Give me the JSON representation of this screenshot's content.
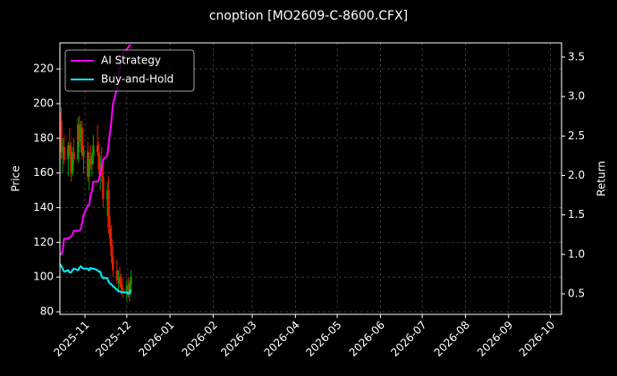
{
  "chart_data": {
    "type": "candlestick",
    "title": "cnoption [MO2609-C-8600.CFX]",
    "ylabel": "Price",
    "y2label": "Return",
    "x": [
      "2025-10-14",
      "2025-10-15",
      "2025-10-16",
      "2025-10-17",
      "2025-10-20",
      "2025-10-21",
      "2025-10-22",
      "2025-10-23",
      "2025-10-24",
      "2025-10-27",
      "2025-10-28",
      "2025-10-29",
      "2025-10-30",
      "2025-10-31",
      "2025-11-03",
      "2025-11-04",
      "2025-11-05",
      "2025-11-06",
      "2025-11-07",
      "2025-11-10",
      "2025-11-11",
      "2025-11-12",
      "2025-11-13",
      "2025-11-14",
      "2025-11-17",
      "2025-11-18",
      "2025-11-19",
      "2025-11-20",
      "2025-11-21",
      "2025-11-24",
      "2025-11-25",
      "2025-11-26",
      "2025-11-27",
      "2025-11-28",
      "2025-12-01",
      "2025-12-02",
      "2025-12-03",
      "2025-12-04"
    ],
    "open": [
      195,
      190,
      172,
      175,
      168,
      176,
      172,
      160,
      172,
      168,
      188,
      178,
      186,
      170,
      172,
      158,
      168,
      165,
      170,
      176,
      172,
      162,
      166,
      158,
      145,
      150,
      128,
      122,
      112,
      104,
      98,
      100,
      96,
      94,
      92,
      95,
      90,
      96
    ],
    "high": [
      205,
      198,
      180,
      182,
      178,
      186,
      178,
      175,
      180,
      192,
      193,
      190,
      190,
      176,
      178,
      172,
      176,
      172,
      182,
      188,
      178,
      170,
      175,
      165,
      155,
      158,
      135,
      130,
      118,
      110,
      104,
      106,
      102,
      100,
      98,
      100,
      98,
      104
    ],
    "low": [
      185,
      168,
      160,
      165,
      158,
      170,
      155,
      158,
      165,
      166,
      175,
      172,
      168,
      160,
      155,
      150,
      162,
      158,
      165,
      170,
      160,
      150,
      155,
      140,
      135,
      125,
      118,
      108,
      100,
      96,
      92,
      94,
      90,
      88,
      86,
      88,
      86,
      90
    ],
    "close": [
      190,
      172,
      175,
      168,
      176,
      172,
      160,
      172,
      168,
      188,
      178,
      186,
      170,
      172,
      158,
      168,
      165,
      170,
      176,
      172,
      162,
      166,
      158,
      145,
      150,
      128,
      122,
      112,
      104,
      98,
      100,
      96,
      94,
      92,
      95,
      90,
      96,
      100
    ],
    "up_color": "#00a000",
    "down_color": "#e02000",
    "series": [
      {
        "name": "AI Strategy",
        "color": "#ff00ff",
        "axis": "y2",
        "values": [
          1.0,
          1.0,
          1.05,
          1.2,
          1.2,
          1.22,
          1.22,
          1.25,
          1.3,
          1.3,
          1.3,
          1.32,
          1.4,
          1.5,
          1.62,
          1.62,
          1.75,
          1.8,
          1.92,
          1.92,
          1.95,
          2.05,
          2.1,
          2.2,
          2.25,
          2.4,
          2.55,
          2.7,
          2.9,
          3.1,
          3.25,
          3.35,
          3.45,
          3.55,
          3.6,
          3.62,
          3.65,
          3.65
        ]
      },
      {
        "name": "Buy-and-Hold",
        "color": "#00f0ff",
        "axis": "y2",
        "values": [
          0.88,
          0.85,
          0.82,
          0.78,
          0.8,
          0.77,
          0.77,
          0.8,
          0.82,
          0.8,
          0.83,
          0.85,
          0.83,
          0.82,
          0.82,
          0.8,
          0.83,
          0.82,
          0.82,
          0.8,
          0.78,
          0.78,
          0.72,
          0.7,
          0.7,
          0.65,
          0.63,
          0.62,
          0.6,
          0.55,
          0.53,
          0.53,
          0.52,
          0.52,
          0.52,
          0.5,
          0.52,
          0.55
        ]
      }
    ],
    "xlim": [
      "2025-10-14",
      "2026-10-09"
    ],
    "xticks": [
      {
        "value": "2025-11-01",
        "label": "2025-11"
      },
      {
        "value": "2025-12-01",
        "label": "2025-12"
      },
      {
        "value": "2026-01-01",
        "label": "2026-01"
      },
      {
        "value": "2026-02-01",
        "label": "2026-02"
      },
      {
        "value": "2026-03-01",
        "label": "2026-03"
      },
      {
        "value": "2026-04-01",
        "label": "2026-04"
      },
      {
        "value": "2026-05-01",
        "label": "2026-05"
      },
      {
        "value": "2026-06-01",
        "label": "2026-06"
      },
      {
        "value": "2026-07-01",
        "label": "2026-07"
      },
      {
        "value": "2026-08-01",
        "label": "2026-08"
      },
      {
        "value": "2026-09-01",
        "label": "2026-09"
      },
      {
        "value": "2026-10-01",
        "label": "2026-10"
      }
    ],
    "ylim": [
      78.5,
      235
    ],
    "yticks": [
      80,
      100,
      120,
      140,
      160,
      180,
      200,
      220
    ],
    "y2lim": [
      0.24,
      3.68
    ],
    "y2ticks": [
      0.5,
      {
        "value": 1,
        "label": "1.0"
      },
      1.5,
      {
        "value": 2,
        "label": "2.0"
      },
      2.5,
      {
        "value": 3,
        "label": "3.0"
      },
      3.5
    ],
    "grid": true,
    "legend": "upper left"
  }
}
